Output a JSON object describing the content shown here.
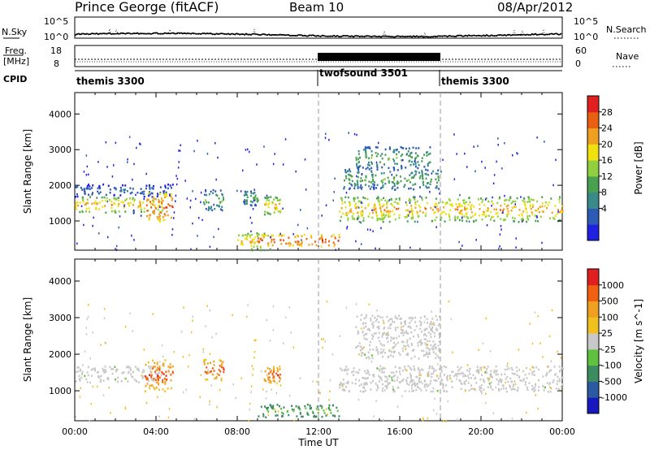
{
  "header": {
    "station": "Prince George (fitACF)",
    "beam": "Beam 10",
    "date": "08/Apr/2012"
  },
  "noise_panel": {
    "left_label": "N.Sky",
    "right_label": "N.Search",
    "left_ticks": [
      "10^5",
      "10^0"
    ],
    "right_ticks": [
      "10^5",
      "10^0"
    ]
  },
  "freq_panel": {
    "left_label_top": "Freq.",
    "left_label_bottom": "[MHz]",
    "left_ticks": [
      "18",
      "8"
    ],
    "right_label": "Nave",
    "right_ticks": [
      "60",
      "0"
    ]
  },
  "cpid_panel": {
    "label": "CPID",
    "segments": [
      {
        "name": "themis 3300",
        "start_hour": 0,
        "end_hour": 12
      },
      {
        "name": "twofsound 3501",
        "start_hour": 12,
        "end_hour": 18
      },
      {
        "name": "themis 3300",
        "start_hour": 18,
        "end_hour": 24
      }
    ]
  },
  "chart_data": [
    {
      "type": "heatmap",
      "panel": "power",
      "ylabel": "Slant Range [km]",
      "xlabel": "",
      "xlim": [
        0,
        24
      ],
      "ylim": [
        180,
        4600
      ],
      "ytick_labels": [
        "4000",
        "3000",
        "2000",
        "1000"
      ],
      "yticks": [
        4000,
        3000,
        2000,
        1000
      ],
      "colorbar": {
        "label": "Power [dB]",
        "ticks": [
          "28",
          "24",
          "20",
          "16",
          "12",
          "8",
          "4"
        ],
        "range": [
          0,
          32
        ],
        "colors": [
          "#2020e0",
          "#2c5ab4",
          "#3a8a8a",
          "#48a050",
          "#90d040",
          "#f0e010",
          "#f0a020",
          "#e86010",
          "#e02020"
        ]
      },
      "echo_regions": [
        {
          "t0": 0.0,
          "t1": 4.3,
          "r0": 1250,
          "r1": 1700,
          "level": "high"
        },
        {
          "t0": 0.0,
          "t1": 4.8,
          "r0": 1700,
          "r1": 2050,
          "level": "low"
        },
        {
          "t0": 3.5,
          "t1": 4.8,
          "r0": 1000,
          "r1": 1800,
          "level": "peak"
        },
        {
          "t0": 6.3,
          "t1": 7.3,
          "r0": 1300,
          "r1": 1900,
          "level": "mid"
        },
        {
          "t0": 8.3,
          "t1": 9.0,
          "r0": 1450,
          "r1": 1900,
          "level": "mid"
        },
        {
          "t0": 9.3,
          "t1": 10.1,
          "r0": 1200,
          "r1": 1700,
          "level": "high"
        },
        {
          "t0": 8.0,
          "t1": 9.6,
          "r0": 200,
          "r1": 700,
          "level": "high"
        },
        {
          "t0": 9.0,
          "t1": 13.0,
          "r0": 300,
          "r1": 650,
          "level": "peak"
        },
        {
          "t0": 13.8,
          "t1": 17.5,
          "r0": 2500,
          "r1": 3100,
          "level": "mid"
        },
        {
          "t0": 13.2,
          "t1": 18.0,
          "r0": 1900,
          "r1": 2500,
          "level": "mid"
        },
        {
          "t0": 13.0,
          "t1": 24.0,
          "r0": 1000,
          "r1": 1700,
          "level": "high"
        }
      ]
    },
    {
      "type": "heatmap",
      "panel": "velocity",
      "ylabel": "Slant Range [km]",
      "xlabel": "Time UT",
      "xlim": [
        0,
        24
      ],
      "ylim": [
        180,
        4600
      ],
      "ytick_labels": [
        "4000",
        "3000",
        "2000",
        "1000"
      ],
      "yticks": [
        4000,
        3000,
        2000,
        1000
      ],
      "xtick_labels": [
        "00:00",
        "04:00",
        "08:00",
        "12:00",
        "16:00",
        "20:00",
        "00:00"
      ],
      "xticks": [
        0,
        4,
        8,
        12,
        16,
        20,
        24
      ],
      "colorbar": {
        "label": "Velocity [m s^-1]",
        "ticks": [
          "1000",
          "500",
          "100",
          "25",
          "-25",
          "-100",
          "-500",
          "-1000"
        ],
        "colors": [
          "#1818c0",
          "#2c5aa0",
          "#3c8c60",
          "#60c040",
          "#c8c8c8",
          "#f0c020",
          "#f0a020",
          "#f06010",
          "#e02020"
        ]
      },
      "echo_regions": [
        {
          "t0": 0.0,
          "t1": 4.3,
          "r0": 1250,
          "r1": 1700,
          "level": "ground"
        },
        {
          "t0": 3.4,
          "t1": 4.8,
          "r0": 1000,
          "r1": 1900,
          "level": "away"
        },
        {
          "t0": 6.3,
          "t1": 7.3,
          "r0": 1300,
          "r1": 1900,
          "level": "away"
        },
        {
          "t0": 9.3,
          "t1": 10.1,
          "r0": 1200,
          "r1": 1700,
          "level": "away"
        },
        {
          "t0": 9.0,
          "t1": 13.0,
          "r0": 300,
          "r1": 650,
          "level": "toward"
        },
        {
          "t0": 13.8,
          "t1": 18.0,
          "r0": 1900,
          "r1": 3100,
          "level": "ground"
        },
        {
          "t0": 13.0,
          "t1": 24.0,
          "r0": 1000,
          "r1": 1700,
          "level": "ground"
        }
      ]
    }
  ]
}
